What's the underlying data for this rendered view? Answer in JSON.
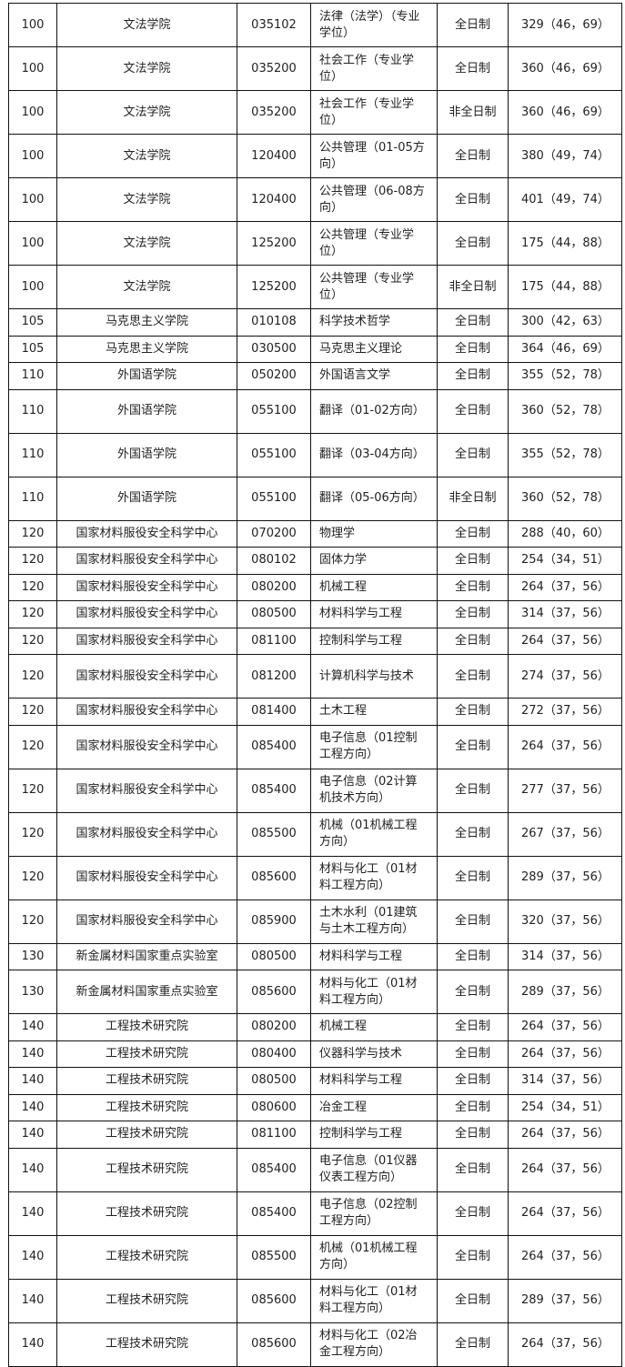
{
  "table": {
    "rows": [
      [
        "100",
        "文法学院",
        "035102",
        "法律（法学）（专业学位）",
        "全日制",
        "329（46，69）"
      ],
      [
        "100",
        "文法学院",
        "035200",
        "社会工作（专业学位）",
        "全日制",
        "360（46，69）"
      ],
      [
        "100",
        "文法学院",
        "035200",
        "社会工作（专业学位）",
        "非全日制",
        "360（46，69）"
      ],
      [
        "100",
        "文法学院",
        "120400",
        "公共管理（01-05方向）",
        "全日制",
        "380（49，74）"
      ],
      [
        "100",
        "文法学院",
        "120400",
        "公共管理（06-08方向）",
        "全日制",
        "401（49，74）"
      ],
      [
        "100",
        "文法学院",
        "125200",
        "公共管理（专业学位）",
        "全日制",
        "175（44，88）"
      ],
      [
        "100",
        "文法学院",
        "125200",
        "公共管理（专业学位）",
        "非全日制",
        "175（44，88）"
      ],
      [
        "105",
        "马克思主义学院",
        "010108",
        "科学技术哲学",
        "全日制",
        "300（42，63）"
      ],
      [
        "105",
        "马克思主义学院",
        "030500",
        "马克思主义理论",
        "全日制",
        "364（46，69）"
      ],
      [
        "110",
        "外国语学院",
        "050200",
        "外国语言文学",
        "全日制",
        "355（52，78）"
      ],
      [
        "110",
        "外国语学院",
        "055100",
        "翻译（01-02方向）",
        "全日制",
        "360（52，78）"
      ],
      [
        "110",
        "外国语学院",
        "055100",
        "翻译（03-04方向）",
        "全日制",
        "355（52，78）"
      ],
      [
        "110",
        "外国语学院",
        "055100",
        "翻译（05-06方向）",
        "非全日制",
        "360（52，78）"
      ],
      [
        "120",
        "国家材料服役安全科学中心",
        "070200",
        "物理学",
        "全日制",
        "288（40，60）"
      ],
      [
        "120",
        "国家材料服役安全科学中心",
        "080102",
        "固体力学",
        "全日制",
        "254（34，51）"
      ],
      [
        "120",
        "国家材料服役安全科学中心",
        "080200",
        "机械工程",
        "全日制",
        "264（37，56）"
      ],
      [
        "120",
        "国家材料服役安全科学中心",
        "080500",
        "材料科学与工程",
        "全日制",
        "314（37，56）"
      ],
      [
        "120",
        "国家材料服役安全科学中心",
        "081100",
        "控制科学与工程",
        "全日制",
        "264（37，56）"
      ],
      [
        "120",
        "国家材料服役安全科学中心",
        "081200",
        "计算机科学与技术",
        "全日制",
        "274（37，56）"
      ],
      [
        "120",
        "国家材料服役安全科学中心",
        "081400",
        "土木工程",
        "全日制",
        "272（37，56）"
      ],
      [
        "120",
        "国家材料服役安全科学中心",
        "085400",
        "电子信息（01控制工程方向）",
        "全日制",
        "264（37，56）"
      ],
      [
        "120",
        "国家材料服役安全科学中心",
        "085400",
        "电子信息（02计算机技术方向）",
        "全日制",
        "277（37，56）"
      ],
      [
        "120",
        "国家材料服役安全科学中心",
        "085500",
        "机械（01机械工程方向）",
        "全日制",
        "267（37，56）"
      ],
      [
        "120",
        "国家材料服役安全科学中心",
        "085600",
        "材料与化工（01材料工程方向）",
        "全日制",
        "289（37，56）"
      ],
      [
        "120",
        "国家材料服役安全科学中心",
        "085900",
        "土木水利（01建筑与土木工程方向）",
        "全日制",
        "320（37，56）"
      ],
      [
        "130",
        "新金属材料国家重点实验室",
        "080500",
        "材料科学与工程",
        "全日制",
        "314（37，56）"
      ],
      [
        "130",
        "新金属材料国家重点实验室",
        "085600",
        "材料与化工（01材料工程方向）",
        "全日制",
        "289（37，56）"
      ],
      [
        "140",
        "工程技术研究院",
        "080200",
        "机械工程",
        "全日制",
        "264（37，56）"
      ],
      [
        "140",
        "工程技术研究院",
        "080400",
        "仪器科学与技术",
        "全日制",
        "264（37，56）"
      ],
      [
        "140",
        "工程技术研究院",
        "080500",
        "材料科学与工程",
        "全日制",
        "314（37，56）"
      ],
      [
        "140",
        "工程技术研究院",
        "080600",
        "冶金工程",
        "全日制",
        "254（34，51）"
      ],
      [
        "140",
        "工程技术研究院",
        "081100",
        "控制科学与工程",
        "全日制",
        "264（37，56）"
      ],
      [
        "140",
        "工程技术研究院",
        "085400",
        "电子信息（01仪器仪表工程方向）",
        "全日制",
        "264（37，56）"
      ],
      [
        "140",
        "工程技术研究院",
        "085400",
        "电子信息（02控制工程方向）",
        "全日制",
        "264（37，56）"
      ],
      [
        "140",
        "工程技术研究院",
        "085500",
        "机械（01机械工程方向）",
        "全日制",
        "264（37，56）"
      ],
      [
        "140",
        "工程技术研究院",
        "085600",
        "材料与化工（01材料工程方向）",
        "全日制",
        "289（37，56）"
      ],
      [
        "140",
        "工程技术研究院",
        "085600",
        "材料与化工（02冶金工程方向）",
        "全日制",
        "264（37，56）"
      ]
    ]
  }
}
